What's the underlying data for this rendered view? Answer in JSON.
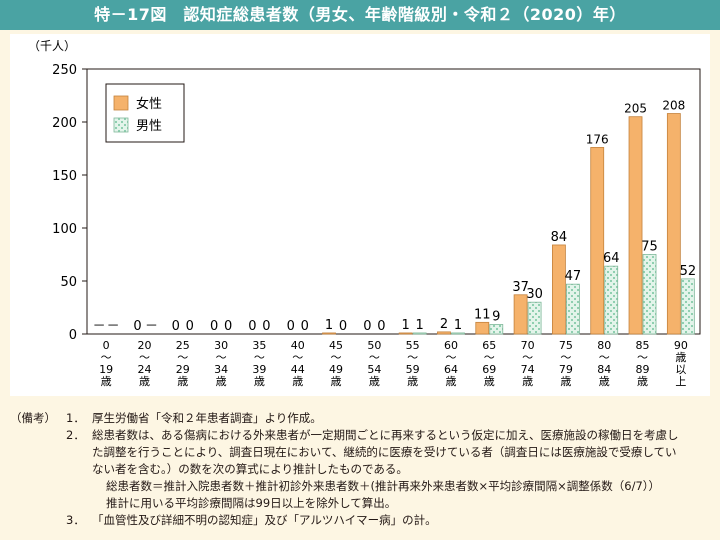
{
  "title": "特－17図　認知症総患者数（男女、年齢階級別・令和２（2020）年）",
  "chart_data": {
    "type": "bar",
    "unit_label": "（千人）",
    "ylim": [
      0,
      250
    ],
    "yticks": [
      "250",
      "200",
      "150",
      "100",
      "50",
      "0"
    ],
    "categories": [
      [
        "0",
        "～",
        "19",
        "歳"
      ],
      [
        "20",
        "～",
        "24",
        "歳"
      ],
      [
        "25",
        "～",
        "29",
        "歳"
      ],
      [
        "30",
        "～",
        "34",
        "歳"
      ],
      [
        "35",
        "～",
        "39",
        "歳"
      ],
      [
        "40",
        "～",
        "44",
        "歳"
      ],
      [
        "45",
        "～",
        "49",
        "歳"
      ],
      [
        "50",
        "～",
        "54",
        "歳"
      ],
      [
        "55",
        "～",
        "59",
        "歳"
      ],
      [
        "60",
        "～",
        "64",
        "歳"
      ],
      [
        "65",
        "～",
        "69",
        "歳"
      ],
      [
        "70",
        "～",
        "74",
        "歳"
      ],
      [
        "75",
        "～",
        "79",
        "歳"
      ],
      [
        "80",
        "～",
        "84",
        "歳"
      ],
      [
        "85",
        "～",
        "89",
        "歳"
      ],
      [
        "90",
        "歳",
        "以",
        "上"
      ]
    ],
    "series": [
      {
        "name": "女性",
        "color": "#f5b26b",
        "values": [
          0,
          0,
          0,
          0,
          0,
          0,
          1,
          0,
          1,
          2,
          11,
          37,
          84,
          176,
          205,
          208
        ],
        "labels": [
          "－",
          "0",
          "0",
          "0",
          "0",
          "0",
          "1",
          "0",
          "1",
          "2",
          "11",
          "37",
          "84",
          "176",
          "205",
          "208"
        ]
      },
      {
        "name": "男性",
        "color": "#d6eee0",
        "values": [
          0,
          0,
          0,
          0,
          0,
          0,
          0,
          0,
          1,
          1,
          9,
          30,
          47,
          64,
          75,
          52
        ],
        "labels": [
          "－",
          "－",
          "0",
          "0",
          "0",
          "0",
          "0",
          "0",
          "1",
          "1",
          "9",
          "30",
          "47",
          "64",
          "75",
          "52"
        ]
      }
    ],
    "legend_position": "top-left",
    "grid": false
  },
  "notes": {
    "head": "（備考）",
    "items": [
      {
        "num": "1．",
        "lines": [
          "厚生労働省「令和２年患者調査」より作成。"
        ]
      },
      {
        "num": "2．",
        "lines": [
          "総患者数は、ある傷病における外来患者が一定期間ごとに再来するという仮定に加え、医療施設の稼働日を考慮し",
          "た調整を行うことにより、調査日現在において、継続的に医療を受けている者（調査日には医療施設で受療してい",
          "ない者を含む。）の数を次の算式により推計したものである。"
        ]
      },
      {
        "num": "",
        "lines": [
          "総患者数＝推計入院患者数＋推計初診外来患者数＋(推計再来外来患者数×平均診療間隔×調整係数（6/7））",
          "推計に用いる平均診療間隔は99日以上を除外して算出。"
        ]
      },
      {
        "num": "3．",
        "lines": [
          "「血管性及び詳細不明の認知症」及び「アルツハイマー病」の計。"
        ]
      }
    ]
  }
}
